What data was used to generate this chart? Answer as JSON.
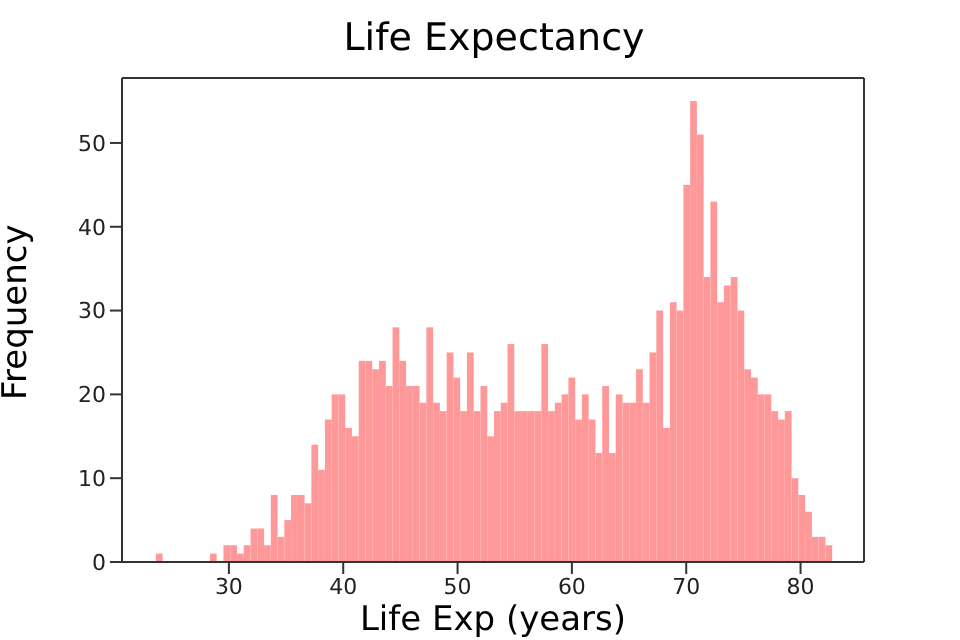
{
  "chart_data": {
    "type": "histogram",
    "title": "Life Expectancy",
    "xlabel": "Life Exp (years)",
    "ylabel": "Frequency",
    "color": "#ff9999",
    "bins": [
      23.6,
      24.19,
      24.78,
      25.37,
      25.96,
      26.55,
      27.14,
      27.73,
      28.32,
      28.91,
      29.5,
      30.09,
      30.68,
      31.27,
      31.86,
      32.45,
      33.04,
      33.63,
      34.22,
      34.81,
      35.4,
      35.99,
      36.58,
      37.17,
      37.76,
      38.35,
      38.94,
      39.53,
      40.12,
      40.71,
      41.3,
      41.89,
      42.48,
      43.07,
      43.66,
      44.25,
      44.84,
      45.43,
      46.02,
      46.61,
      47.2,
      47.79,
      48.38,
      48.97,
      49.56,
      50.15,
      50.74,
      51.33,
      51.92,
      52.51,
      53.1,
      53.69,
      54.28,
      54.87,
      55.46,
      56.05,
      56.64,
      57.23,
      57.82,
      58.41,
      59.0,
      59.59,
      60.18,
      60.77,
      61.36,
      61.95,
      62.54,
      63.13,
      63.72,
      64.31,
      64.9,
      65.49,
      66.08,
      66.67,
      67.26,
      67.85,
      68.44,
      69.03,
      69.62,
      70.21,
      70.8,
      71.39,
      71.98,
      72.57,
      73.16,
      73.75,
      74.34,
      74.93,
      75.52,
      76.11,
      76.7,
      77.29,
      77.88,
      78.47,
      79.06,
      79.65,
      80.24,
      80.83,
      81.42,
      82.01,
      82.6
    ],
    "values": [
      1,
      0,
      0,
      0,
      0,
      0,
      0,
      0,
      1,
      0,
      2,
      2,
      1,
      2,
      4,
      4,
      2,
      8,
      3,
      5,
      8,
      8,
      7,
      14,
      11,
      17,
      20,
      20,
      16,
      15,
      24,
      24,
      23,
      24,
      21,
      28,
      24,
      21,
      21,
      19,
      28,
      19,
      18,
      25,
      22,
      18,
      25,
      18,
      21,
      15,
      18,
      19,
      26,
      18,
      18,
      18,
      18,
      26,
      18,
      19,
      20,
      22,
      17,
      20,
      17,
      13,
      21,
      13,
      20,
      19,
      19,
      23,
      19,
      25,
      30,
      16,
      31,
      30,
      45,
      55,
      51,
      34,
      43,
      31,
      33,
      34,
      30,
      23,
      22,
      20,
      20,
      18,
      17,
      18,
      10,
      8,
      6,
      3,
      3,
      2
    ],
    "xlim": [
      20.65,
      85.55
    ],
    "xticks": [
      30,
      40,
      50,
      60,
      70,
      80
    ],
    "ylim": [
      0,
      57.75
    ],
    "yticks": [
      0,
      10,
      20,
      30,
      40,
      50
    ]
  }
}
